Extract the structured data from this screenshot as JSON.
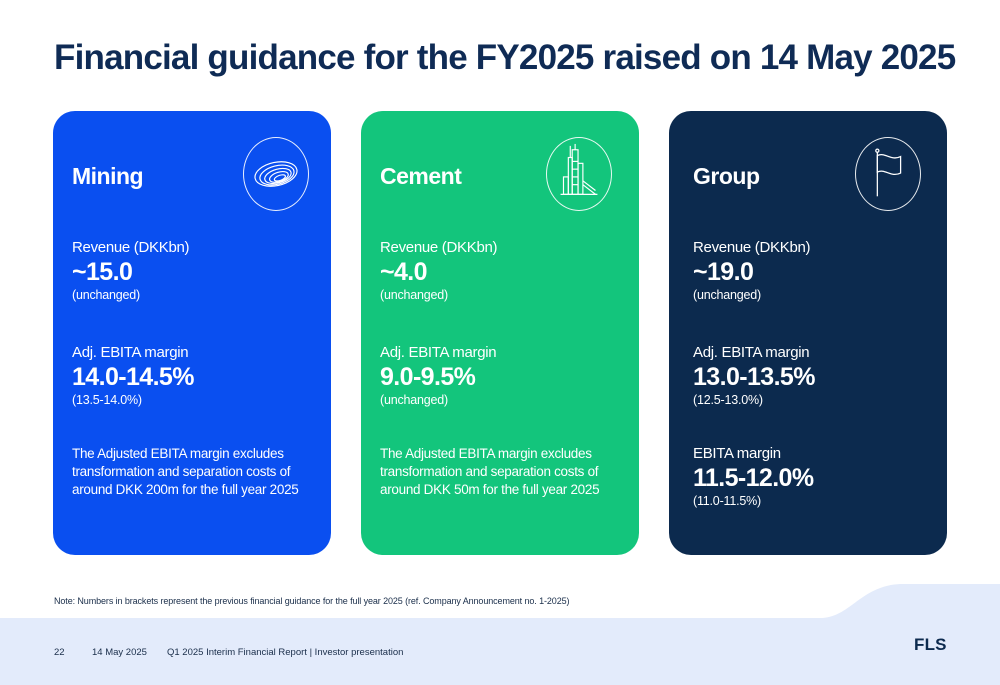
{
  "title": "Financial guidance for the FY2025 raised on 14 May 2025",
  "cards": {
    "mining": {
      "name": "Mining",
      "icon": "mining-swirl-icon",
      "revenue_label": "Revenue (DKKbn)",
      "revenue_value": "~15.0",
      "revenue_previous": "(unchanged)",
      "margin_label": "Adj. EBITA margin",
      "margin_value": "14.0-14.5%",
      "margin_previous": "(13.5-14.0%)",
      "note": "The Adjusted EBITA margin excludes transformation and separation costs of around DKK 200m for the full year 2025"
    },
    "cement": {
      "name": "Cement",
      "icon": "cement-plant-icon",
      "revenue_label": "Revenue (DKKbn)",
      "revenue_value": "~4.0",
      "revenue_previous": "(unchanged)",
      "margin_label": "Adj. EBITA margin",
      "margin_value": "9.0-9.5%",
      "margin_previous": "(unchanged)",
      "note": "The Adjusted EBITA margin excludes transformation and separation costs of around DKK 50m for the full year 2025"
    },
    "group": {
      "name": "Group",
      "icon": "flag-icon",
      "revenue_label": "Revenue (DKKbn)",
      "revenue_value": "~19.0",
      "revenue_previous": "(unchanged)",
      "margin_label": "Adj. EBITA margin",
      "margin_value": "13.0-13.5%",
      "margin_previous": "(12.5-13.0%)",
      "ebita_label": "EBITA margin",
      "ebita_value": "11.5-12.0%",
      "ebita_previous": "(11.0-11.5%)"
    }
  },
  "footnote": "Note: Numbers in brackets represent the previous financial guidance for the full year 2025 (ref. Company Announcement no. 1-2025)",
  "footer": {
    "page_number": "22",
    "date": "14 May 2025",
    "report": "Q1 2025 Interim Financial Report | Investor presentation",
    "logo": "FLS"
  },
  "colors": {
    "mining": "#0a4ff0",
    "cement": "#13c57c",
    "group": "#0c2a4e",
    "footer_band": "#e3ebfb"
  }
}
